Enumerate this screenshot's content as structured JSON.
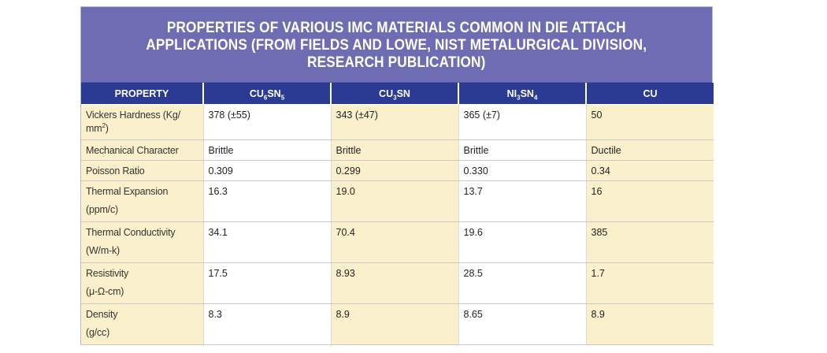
{
  "title": "PROPERTIES OF VARIOUS IMC MATERIALS COMMON IN DIE ATTACH\nAPPLICATIONS (FROM FIELDS AND LOWE, NIST METALURGICAL DIVISION,\nRESEARCH PUBLICATION)",
  "header": {
    "property": "PROPERTY",
    "col1": {
      "main": "CU",
      "sub1": "6",
      "mid": "SN",
      "sub2": "5"
    },
    "col2": {
      "main": "CU",
      "sub1": "3",
      "mid": "SN",
      "sub2": ""
    },
    "col3": {
      "main": "NI",
      "sub1": "3",
      "mid": "SN",
      "sub2": "4"
    },
    "col4": {
      "main": "CU",
      "sub1": "",
      "mid": "",
      "sub2": ""
    }
  },
  "rows": [
    {
      "property_line1": "Vickers Hardness (Kg/",
      "property_line2": "mm",
      "property_sup": "2",
      "property_tail": ")",
      "values": [
        "378 (±55)",
        "343 (±47)",
        "365 (±7)",
        "50"
      ]
    },
    {
      "property_line1": "Mechanical Character",
      "property_line2": "",
      "values": [
        "Brittle",
        "Brittle",
        "Brittle",
        "Ductile"
      ]
    },
    {
      "property_line1": "Poisson Ratio",
      "property_line2": "",
      "values": [
        "0.309",
        "0.299",
        "0.330",
        "0.34"
      ]
    },
    {
      "property_line1": "Thermal Expansion",
      "property_line2": "(ppm/c)",
      "values": [
        "16.3",
        "19.0",
        "13.7",
        "16"
      ]
    },
    {
      "property_line1": "Thermal Conductivity",
      "property_line2": "(W/m-k)",
      "values": [
        "34.1",
        "70.4",
        "19.6",
        "385"
      ]
    },
    {
      "property_line1": "Resistivity",
      "property_line2": "(μ-Ω-cm)",
      "values": [
        "17.5",
        "8.93",
        "28.5",
        "1.7"
      ]
    },
    {
      "property_line1": "Density",
      "property_line2": "(g/cc)",
      "values": [
        "8.3",
        "8.9",
        "8.65",
        "8.9"
      ]
    }
  ],
  "colors": {
    "title_band": "#6e6db3",
    "header_band": "#2b3a93",
    "cream": "#fbf0cc",
    "white": "#ffffff"
  }
}
